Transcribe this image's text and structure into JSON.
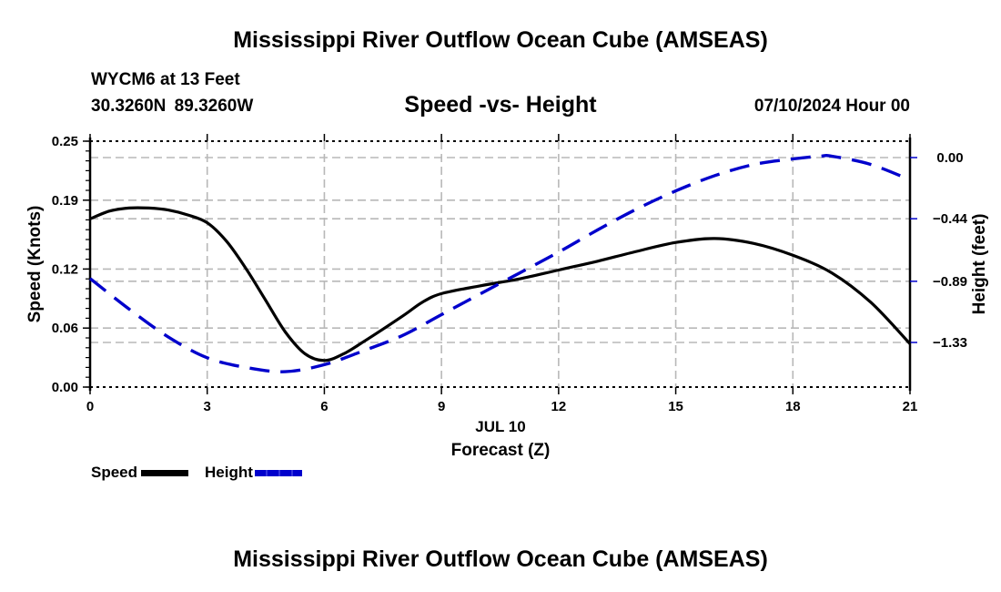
{
  "header": {
    "title": "Mississippi River Outflow Ocean Cube (AMSEAS)",
    "station": "WYCM6 at 13 Feet",
    "coordinates": "30.3260N  89.3260W",
    "subtitle": "Speed -vs- Height",
    "datetime": "07/10/2024 Hour 00"
  },
  "footer": {
    "title": "Mississippi River Outflow Ocean Cube (AMSEAS)"
  },
  "legend": {
    "items": [
      {
        "label": "Speed",
        "color": "#000000",
        "style": "solid"
      },
      {
        "label": "Height",
        "color": "#0000cc",
        "style": "dashed"
      }
    ]
  },
  "chart_data": {
    "type": "line",
    "title": "Speed -vs- Height",
    "xlabel": "Forecast (Z)",
    "xlabel_date": "JUL 10",
    "ylabel": "Speed (Knots)",
    "y2label": "Height (feet)",
    "xlim": [
      0,
      21
    ],
    "ylim": [
      0,
      0.25
    ],
    "y2lim": [
      -1.65,
      0.12
    ],
    "x_ticks": [
      0,
      3,
      6,
      9,
      12,
      15,
      18,
      21
    ],
    "x_tick_labels": [
      "0",
      "3",
      "6",
      "9",
      "12",
      "15",
      "18",
      "21"
    ],
    "y_ticks": [
      0.0,
      0.06,
      0.12,
      0.19,
      0.25
    ],
    "y_tick_labels": [
      "0.00",
      "0.06",
      "0.12",
      "0.19",
      "0.25"
    ],
    "y2_ticks": [
      0.0,
      -0.44,
      -0.89,
      -1.33
    ],
    "y2_tick_labels": [
      "0.00",
      "−0.44",
      "−0.89",
      "−1.33"
    ],
    "grid": true,
    "legend_position": "bottom-left",
    "series": [
      {
        "name": "Speed",
        "axis": "left",
        "color": "#000000",
        "style": "solid",
        "x": [
          0,
          0.5,
          1,
          1.5,
          2,
          2.5,
          3,
          3.5,
          4,
          4.5,
          5,
          5.5,
          6,
          6.5,
          7,
          8,
          8.5,
          9,
          10,
          11,
          12,
          13,
          14,
          15,
          16,
          17,
          18,
          19,
          20,
          21
        ],
        "values": [
          0.171,
          0.179,
          0.182,
          0.182,
          0.18,
          0.175,
          0.167,
          0.148,
          0.12,
          0.088,
          0.056,
          0.034,
          0.027,
          0.034,
          0.046,
          0.072,
          0.086,
          0.095,
          0.103,
          0.11,
          0.119,
          0.128,
          0.138,
          0.147,
          0.151,
          0.146,
          0.134,
          0.116,
          0.086,
          0.044
        ]
      },
      {
        "name": "Height",
        "axis": "right",
        "color": "#0000cc",
        "style": "dashed",
        "x": [
          0,
          1,
          2,
          3,
          4,
          5,
          6,
          7,
          8,
          9,
          10,
          11,
          12,
          13,
          14,
          15,
          16,
          17,
          18,
          18.7,
          19,
          20,
          21
        ],
        "values": [
          -0.87,
          -1.09,
          -1.29,
          -1.44,
          -1.51,
          -1.54,
          -1.49,
          -1.39,
          -1.28,
          -1.13,
          -0.98,
          -0.83,
          -0.68,
          -0.52,
          -0.37,
          -0.24,
          -0.13,
          -0.05,
          -0.01,
          0.01,
          0.01,
          -0.05,
          -0.16
        ]
      }
    ]
  }
}
